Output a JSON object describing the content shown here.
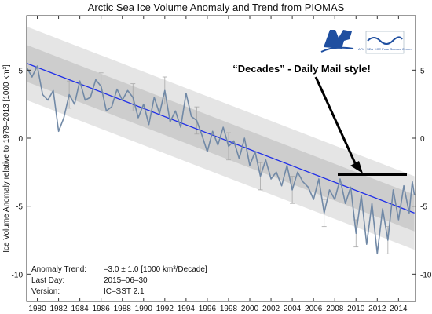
{
  "chart_data": {
    "type": "line",
    "title": "Arctic Sea Ice Volume Anomaly and Trend from PIOMAS",
    "ylabel": "Ice Volume Anomaly relative to 1979–2013 [1000 km³]",
    "xlim": [
      1979,
      2015.6
    ],
    "ylim": [
      -12,
      9
    ],
    "grid": false,
    "x_ticks": [
      "1980",
      "1982",
      "1984",
      "1986",
      "1988",
      "1990",
      "1992",
      "1994",
      "1996",
      "1998",
      "2000",
      "2002",
      "2004",
      "2006",
      "2008",
      "2010",
      "2012",
      "2014"
    ],
    "y_ticks": [
      5,
      0,
      -5,
      -10
    ],
    "trend": {
      "start": [
        1979,
        5.5
      ],
      "end": [
        2015.5,
        -5.5
      ]
    },
    "bands": [
      {
        "name": "outer",
        "offset": 2.7,
        "color": "#e5e5e5"
      },
      {
        "name": "inner",
        "offset": 1.35,
        "color": "#cdcdcd"
      }
    ],
    "series": [
      {
        "x": [
          1979.0,
          1979.5,
          1980.0,
          1980.5,
          1981.0,
          1981.5,
          1982.0,
          1982.5,
          1983.0,
          1983.5,
          1984.0,
          1984.5,
          1985.0,
          1985.5,
          1986.0,
          1986.5,
          1987.0,
          1987.5,
          1988.0,
          1988.5,
          1989.0,
          1989.5,
          1990.0,
          1990.5,
          1991.0,
          1991.5,
          1992.0,
          1992.5,
          1993.0,
          1993.5,
          1994.0,
          1994.5,
          1995.0,
          1995.5,
          1996.0,
          1996.5,
          1997.0,
          1997.5,
          1998.0,
          1998.5,
          1999.0,
          1999.5,
          2000.0,
          2000.5,
          2001.0,
          2001.5,
          2002.0,
          2002.5,
          2003.0,
          2003.5,
          2004.0,
          2004.5,
          2005.0,
          2005.5,
          2006.0,
          2006.5,
          2007.0,
          2007.5,
          2008.0,
          2008.5,
          2009.0,
          2009.5,
          2010.0,
          2010.5,
          2011.0,
          2011.5,
          2012.0,
          2012.5,
          2013.0,
          2013.5,
          2014.0,
          2014.5,
          2015.0,
          2015.3,
          2015.5
        ],
        "y": [
          5.2,
          4.5,
          5.3,
          3.2,
          2.8,
          3.5,
          0.5,
          1.5,
          3.2,
          2.5,
          4.2,
          2.8,
          3.0,
          4.3,
          3.8,
          2.0,
          2.3,
          3.6,
          2.8,
          3.5,
          3.0,
          1.5,
          2.5,
          1.0,
          3.0,
          1.8,
          3.5,
          1.2,
          2.0,
          0.8,
          3.3,
          1.6,
          1.3,
          0.2,
          -1.0,
          0.5,
          -0.5,
          0.8,
          -0.6,
          -0.2,
          -1.5,
          0.0,
          -2.0,
          -1.0,
          -2.8,
          -1.6,
          -3.0,
          -2.5,
          -3.5,
          -2.0,
          -3.8,
          -2.5,
          -3.2,
          -3.6,
          -4.5,
          -3.0,
          -5.5,
          -3.8,
          -4.5,
          -3.0,
          -4.8,
          -3.6,
          -7.0,
          -4.2,
          -7.8,
          -4.8,
          -8.5,
          -5.2,
          -7.5,
          -3.8,
          -6.0,
          -3.5,
          -5.5,
          -3.2,
          -4.2
        ],
        "error_bars": {
          "x": [
            1983,
            1986,
            1989,
            1992,
            1995,
            1998,
            2001,
            2004,
            2007,
            2010,
            2013
          ],
          "half_width": 1.0
        }
      }
    ],
    "info": [
      {
        "label": "Anomaly Trend:",
        "value": "–3.0 ± 1.0 [1000 km³/Decade]"
      },
      {
        "label": "Last Day:",
        "value": "2015–06–30"
      },
      {
        "label": "Version:",
        "value": "IC–SST 2.1"
      }
    ],
    "annotation": "“Decades” - Daily Mail style!",
    "logo_text": "APL · SEA · ICE Polar Science Center",
    "colors": {
      "line": "#7189a6",
      "trend": "#1f2ee8",
      "error_bar": "#a8a8a8",
      "logo_blue": "#1f4fa0"
    }
  }
}
